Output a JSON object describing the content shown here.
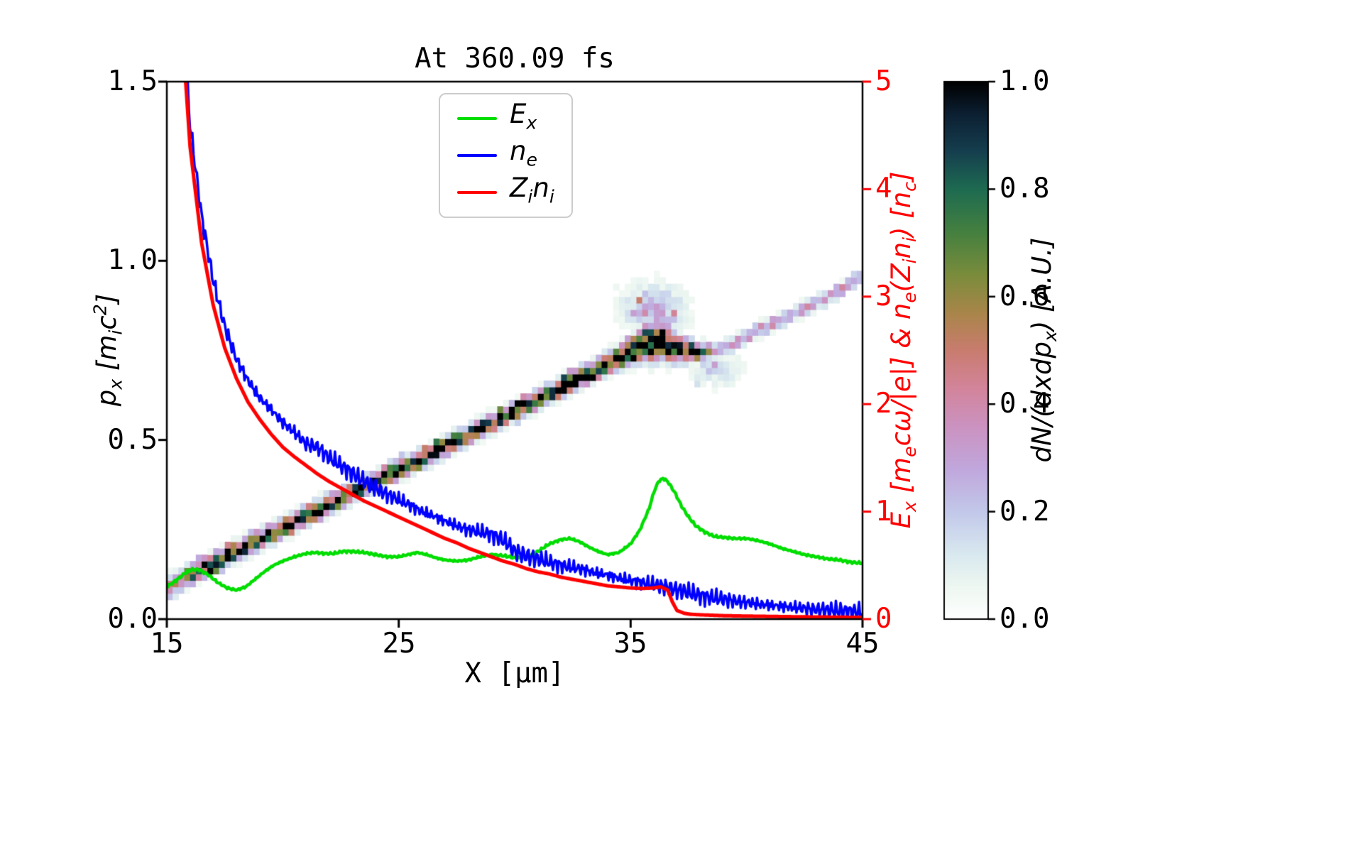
{
  "chart_data": {
    "type": "line+heatmap",
    "title": "At 360.09 fs",
    "xlabel": "X [μm]",
    "ylabel_left": "p_{x} [m_{i}c^{2}]",
    "ylabel_right": "E_{x} [m_{e}cω/|e|] & n_{e}(Z_{i}n_{i}) [n_{c}]",
    "xlim": [
      15,
      45
    ],
    "ylim_left": [
      0.0,
      1.5
    ],
    "ylim_right": [
      0,
      5
    ],
    "grid": false,
    "legend_position": "upper center",
    "x_ticks": [
      {
        "v": 15,
        "label": "15"
      },
      {
        "v": 25,
        "label": "25"
      },
      {
        "v": 35,
        "label": "35"
      },
      {
        "v": 45,
        "label": "45"
      }
    ],
    "y_ticks_left": [
      {
        "v": 0.0,
        "label": "0.0"
      },
      {
        "v": 0.5,
        "label": "0.5"
      },
      {
        "v": 1.0,
        "label": "1.0"
      },
      {
        "v": 1.5,
        "label": "1.5"
      }
    ],
    "y_ticks_right": [
      {
        "v": 0,
        "label": "0"
      },
      {
        "v": 1,
        "label": "1"
      },
      {
        "v": 2,
        "label": "2"
      },
      {
        "v": 3,
        "label": "3"
      },
      {
        "v": 4,
        "label": "4"
      },
      {
        "v": 5,
        "label": "5"
      }
    ],
    "legend": {
      "items": [
        {
          "label": "E_{x}",
          "color": "#00dd00"
        },
        {
          "label": "n_{e}",
          "color": "#0000ff"
        },
        {
          "label": "Z_{i}n_{i}",
          "color": "#ff0000"
        }
      ]
    },
    "colors": {
      "right_axis": "#ff0000",
      "spine": "#000000",
      "background": "#ffffff"
    },
    "colorbar": {
      "label": "dN/(dxdp_{x}) [A.U.]",
      "range": [
        0.0,
        1.0
      ],
      "ticks": [
        {
          "v": 0.0,
          "label": "0.0"
        },
        {
          "v": 0.2,
          "label": "0.2"
        },
        {
          "v": 0.4,
          "label": "0.4"
        },
        {
          "v": 0.6,
          "label": "0.6"
        },
        {
          "v": 0.8,
          "label": "0.8"
        },
        {
          "v": 1.0,
          "label": "1.0"
        }
      ],
      "stops": [
        [
          0.0,
          "#ffffff"
        ],
        [
          0.06,
          "#eef7f1"
        ],
        [
          0.12,
          "#d9e9ef"
        ],
        [
          0.2,
          "#c2c8e9"
        ],
        [
          0.28,
          "#c0a7dc"
        ],
        [
          0.36,
          "#cb92c0"
        ],
        [
          0.43,
          "#d2849b"
        ],
        [
          0.5,
          "#c97c6f"
        ],
        [
          0.57,
          "#a9854a"
        ],
        [
          0.64,
          "#7b8c3c"
        ],
        [
          0.72,
          "#45803f"
        ],
        [
          0.8,
          "#1e6b51"
        ],
        [
          0.87,
          "#153f4e"
        ],
        [
          0.94,
          "#0c2033"
        ],
        [
          1.0,
          "#000000"
        ]
      ]
    },
    "series": [
      {
        "name": "E_{x}",
        "axis": "right",
        "color": "#00dd00",
        "linewidth": 4.5,
        "noise_amp": 0.006,
        "points": [
          [
            15.0,
            0.3
          ],
          [
            15.4,
            0.36
          ],
          [
            15.8,
            0.43
          ],
          [
            16.1,
            0.46
          ],
          [
            16.4,
            0.46
          ],
          [
            16.8,
            0.41
          ],
          [
            17.2,
            0.34
          ],
          [
            17.6,
            0.29
          ],
          [
            18.0,
            0.27
          ],
          [
            18.4,
            0.3
          ],
          [
            18.8,
            0.37
          ],
          [
            19.2,
            0.44
          ],
          [
            19.6,
            0.5
          ],
          [
            20.0,
            0.54
          ],
          [
            20.5,
            0.58
          ],
          [
            21.0,
            0.61
          ],
          [
            21.4,
            0.62
          ],
          [
            21.8,
            0.61
          ],
          [
            22.2,
            0.61
          ],
          [
            22.6,
            0.63
          ],
          [
            23.0,
            0.63
          ],
          [
            23.5,
            0.62
          ],
          [
            24.0,
            0.6
          ],
          [
            24.5,
            0.58
          ],
          [
            25.0,
            0.58
          ],
          [
            25.4,
            0.6
          ],
          [
            25.8,
            0.62
          ],
          [
            26.2,
            0.6
          ],
          [
            26.6,
            0.57
          ],
          [
            27.0,
            0.55
          ],
          [
            27.5,
            0.54
          ],
          [
            28.0,
            0.55
          ],
          [
            28.5,
            0.58
          ],
          [
            29.0,
            0.6
          ],
          [
            29.5,
            0.59
          ],
          [
            30.0,
            0.57
          ],
          [
            30.5,
            0.57
          ],
          [
            31.0,
            0.63
          ],
          [
            31.5,
            0.7
          ],
          [
            32.0,
            0.74
          ],
          [
            32.4,
            0.75
          ],
          [
            32.8,
            0.72
          ],
          [
            33.2,
            0.67
          ],
          [
            33.6,
            0.63
          ],
          [
            34.0,
            0.6
          ],
          [
            34.5,
            0.62
          ],
          [
            35.0,
            0.7
          ],
          [
            35.4,
            0.83
          ],
          [
            35.8,
            1.03
          ],
          [
            36.0,
            1.18
          ],
          [
            36.2,
            1.28
          ],
          [
            36.4,
            1.31
          ],
          [
            36.6,
            1.28
          ],
          [
            36.9,
            1.18
          ],
          [
            37.2,
            1.05
          ],
          [
            37.5,
            0.95
          ],
          [
            37.8,
            0.87
          ],
          [
            38.2,
            0.81
          ],
          [
            38.6,
            0.77
          ],
          [
            39.0,
            0.76
          ],
          [
            39.5,
            0.75
          ],
          [
            40.0,
            0.75
          ],
          [
            40.5,
            0.73
          ],
          [
            41.0,
            0.7
          ],
          [
            41.5,
            0.66
          ],
          [
            42.0,
            0.63
          ],
          [
            42.5,
            0.6
          ],
          [
            43.0,
            0.58
          ],
          [
            43.5,
            0.56
          ],
          [
            44.0,
            0.55
          ],
          [
            44.5,
            0.53
          ],
          [
            45.0,
            0.52
          ]
        ]
      },
      {
        "name": "n_{e}",
        "axis": "right",
        "color": "#0000ff",
        "linewidth": 3.5,
        "noise_amp": 0.045,
        "points": [
          [
            15.0,
            9.0
          ],
          [
            15.5,
            6.2
          ],
          [
            16.0,
            4.6
          ],
          [
            16.5,
            3.75
          ],
          [
            17.0,
            3.15
          ],
          [
            17.5,
            2.72
          ],
          [
            18.0,
            2.42
          ],
          [
            18.5,
            2.22
          ],
          [
            19.0,
            2.06
          ],
          [
            19.5,
            1.95
          ],
          [
            20.0,
            1.83
          ],
          [
            20.5,
            1.74
          ],
          [
            21.0,
            1.63
          ],
          [
            21.5,
            1.6
          ],
          [
            22.0,
            1.5
          ],
          [
            22.5,
            1.43
          ],
          [
            23.0,
            1.36
          ],
          [
            23.5,
            1.28
          ],
          [
            24.0,
            1.22
          ],
          [
            24.5,
            1.16
          ],
          [
            25.0,
            1.11
          ],
          [
            25.5,
            1.06
          ],
          [
            26.0,
            1.0
          ],
          [
            26.5,
            0.96
          ],
          [
            27.0,
            0.91
          ],
          [
            27.5,
            0.87
          ],
          [
            28.0,
            0.83
          ],
          [
            28.5,
            0.81
          ],
          [
            29.0,
            0.79
          ],
          [
            29.3,
            0.76
          ],
          [
            29.7,
            0.7
          ],
          [
            30.0,
            0.63
          ],
          [
            30.5,
            0.59
          ],
          [
            31.0,
            0.56
          ],
          [
            31.5,
            0.53
          ],
          [
            32.0,
            0.5
          ],
          [
            32.5,
            0.48
          ],
          [
            33.0,
            0.46
          ],
          [
            33.5,
            0.43
          ],
          [
            34.0,
            0.41
          ],
          [
            34.5,
            0.38
          ],
          [
            35.0,
            0.36
          ],
          [
            35.5,
            0.34
          ],
          [
            36.0,
            0.32
          ],
          [
            36.5,
            0.3
          ],
          [
            37.0,
            0.27
          ],
          [
            37.5,
            0.25
          ],
          [
            38.0,
            0.22
          ],
          [
            38.5,
            0.2
          ],
          [
            39.0,
            0.185
          ],
          [
            39.5,
            0.17
          ],
          [
            40.0,
            0.155
          ],
          [
            40.5,
            0.14
          ],
          [
            41.0,
            0.13
          ],
          [
            41.5,
            0.12
          ],
          [
            42.0,
            0.11
          ],
          [
            42.5,
            0.1
          ],
          [
            43.0,
            0.09
          ],
          [
            43.5,
            0.085
          ],
          [
            44.0,
            0.08
          ],
          [
            44.5,
            0.072
          ],
          [
            45.0,
            0.065
          ]
        ]
      },
      {
        "name": "Z_{i}n_{i}",
        "axis": "right",
        "color": "#ff0000",
        "linewidth": 5,
        "noise_amp": 0,
        "points": [
          [
            15.0,
            8.5
          ],
          [
            15.5,
            6.0
          ],
          [
            16.0,
            4.4
          ],
          [
            16.5,
            3.5
          ],
          [
            17.0,
            2.92
          ],
          [
            17.5,
            2.52
          ],
          [
            18.0,
            2.24
          ],
          [
            18.5,
            2.02
          ],
          [
            19.0,
            1.86
          ],
          [
            19.5,
            1.72
          ],
          [
            20.0,
            1.6
          ],
          [
            20.5,
            1.51
          ],
          [
            21.0,
            1.43
          ],
          [
            21.5,
            1.35
          ],
          [
            22.0,
            1.28
          ],
          [
            22.5,
            1.22
          ],
          [
            23.0,
            1.16
          ],
          [
            23.5,
            1.1
          ],
          [
            24.0,
            1.05
          ],
          [
            24.5,
            1.0
          ],
          [
            25.0,
            0.95
          ],
          [
            25.5,
            0.9
          ],
          [
            26.0,
            0.85
          ],
          [
            26.5,
            0.8
          ],
          [
            27.0,
            0.75
          ],
          [
            27.5,
            0.71
          ],
          [
            28.0,
            0.66
          ],
          [
            28.5,
            0.62
          ],
          [
            29.0,
            0.58
          ],
          [
            29.5,
            0.54
          ],
          [
            30.0,
            0.51
          ],
          [
            30.5,
            0.47
          ],
          [
            31.0,
            0.44
          ],
          [
            31.5,
            0.42
          ],
          [
            32.0,
            0.39
          ],
          [
            32.5,
            0.37
          ],
          [
            33.0,
            0.35
          ],
          [
            33.5,
            0.33
          ],
          [
            34.0,
            0.31
          ],
          [
            34.5,
            0.3
          ],
          [
            35.0,
            0.29
          ],
          [
            35.5,
            0.285
          ],
          [
            36.0,
            0.29
          ],
          [
            36.3,
            0.3
          ],
          [
            36.6,
            0.27
          ],
          [
            36.8,
            0.16
          ],
          [
            37.0,
            0.08
          ],
          [
            37.3,
            0.055
          ],
          [
            37.6,
            0.045
          ],
          [
            38.0,
            0.04
          ],
          [
            39.0,
            0.032
          ],
          [
            40.0,
            0.028
          ],
          [
            41.0,
            0.025
          ],
          [
            42.0,
            0.022
          ],
          [
            43.0,
            0.02
          ],
          [
            44.0,
            0.018
          ],
          [
            45.0,
            0.016
          ]
        ]
      }
    ],
    "phase_space": {
      "label": "dN/(dxdp_{x}) [A.U.]",
      "units_x": "μm",
      "units_p": "m_{i}c^{2}",
      "bin_x": 0.25,
      "bin_p": 0.018,
      "band": [
        [
          15.0,
          0.085,
          0.45,
          0.02
        ],
        [
          15.5,
          0.105,
          0.6,
          0.018
        ],
        [
          16.0,
          0.125,
          0.75,
          0.017
        ],
        [
          17.0,
          0.155,
          0.9,
          0.016
        ],
        [
          18.0,
          0.19,
          0.95,
          0.016
        ],
        [
          20.0,
          0.255,
          0.95,
          0.016
        ],
        [
          22.0,
          0.32,
          0.95,
          0.016
        ],
        [
          24.0,
          0.385,
          0.95,
          0.016
        ],
        [
          26.0,
          0.45,
          0.95,
          0.016
        ],
        [
          28.0,
          0.515,
          0.95,
          0.016
        ],
        [
          30.0,
          0.58,
          0.95,
          0.016
        ],
        [
          32.0,
          0.645,
          0.95,
          0.016
        ],
        [
          34.0,
          0.715,
          0.96,
          0.017
        ],
        [
          35.0,
          0.75,
          1.0,
          0.022
        ],
        [
          35.7,
          0.775,
          1.0,
          0.032
        ],
        [
          36.3,
          0.78,
          1.0,
          0.034
        ],
        [
          36.8,
          0.765,
          1.0,
          0.027
        ],
        [
          37.3,
          0.75,
          0.95,
          0.019
        ],
        [
          37.8,
          0.748,
          0.85,
          0.016
        ],
        [
          38.3,
          0.75,
          0.5,
          0.014
        ],
        [
          38.9,
          0.757,
          0.3,
          0.013
        ],
        [
          39.5,
          0.772,
          0.33,
          0.013
        ],
        [
          40.5,
          0.803,
          0.36,
          0.013
        ],
        [
          41.5,
          0.836,
          0.35,
          0.013
        ],
        [
          42.5,
          0.868,
          0.34,
          0.013
        ],
        [
          43.5,
          0.9,
          0.33,
          0.013
        ],
        [
          44.5,
          0.938,
          0.32,
          0.013
        ],
        [
          45.0,
          0.958,
          0.32,
          0.013
        ]
      ],
      "blobs": [
        [
          36.0,
          0.862,
          0.9,
          0.05,
          0.26
        ],
        [
          38.6,
          0.7,
          0.8,
          0.035,
          0.16
        ]
      ]
    }
  }
}
